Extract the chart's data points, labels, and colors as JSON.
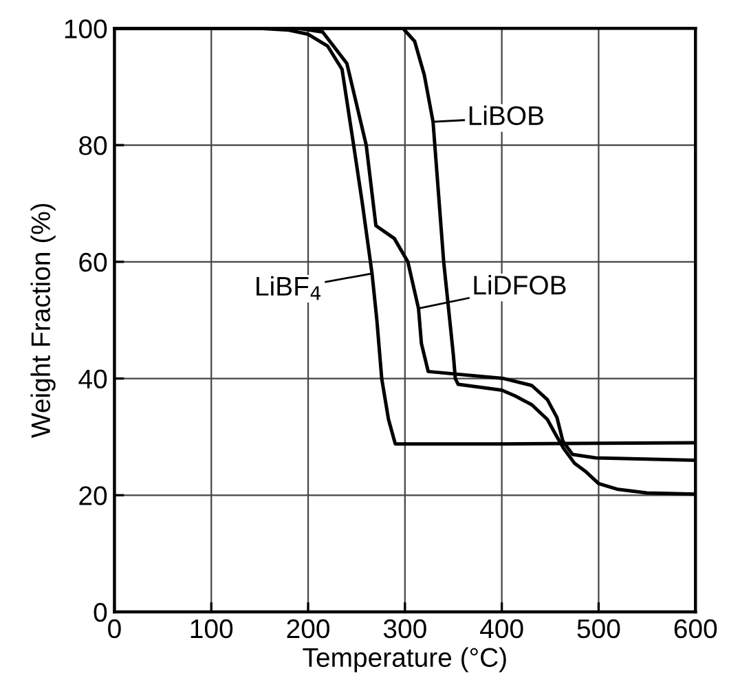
{
  "chart_data": {
    "type": "line",
    "xlabel": "Temperature (°C)",
    "ylabel": "Weight Fraction (%)",
    "xlim": [
      0,
      600
    ],
    "ylim": [
      0,
      100
    ],
    "xticks": [
      0,
      100,
      200,
      300,
      400,
      500,
      600
    ],
    "yticks": [
      0,
      20,
      40,
      60,
      80,
      100
    ],
    "grid": true,
    "legend": false,
    "marker": "none",
    "line_style": "solid",
    "series": [
      {
        "color": "#000000",
        "x": [
          0,
          150,
          180,
          200,
          220,
          235,
          247,
          256,
          266,
          271,
          276,
          283,
          290,
          300,
          400,
          500,
          600
        ],
        "values": [
          100,
          100,
          99.7,
          99,
          97,
          93,
          80,
          70,
          58,
          50,
          40,
          33,
          28.8,
          28.8,
          28.8,
          28.9,
          29
        ]
      },
      {
        "color": "#000000",
        "x": [
          0,
          190,
          215,
          240,
          260,
          270,
          289,
          303,
          314,
          317,
          324,
          402,
          431,
          447,
          457,
          463,
          473,
          497,
          600
        ],
        "values": [
          100,
          100,
          99.4,
          94,
          80,
          66.2,
          64,
          60,
          52,
          46,
          41.2,
          40,
          38.8,
          36.4,
          33.3,
          29.3,
          27,
          26.4,
          26
        ]
      },
      {
        "color": "#000000",
        "x": [
          0,
          298,
          310,
          320,
          329,
          340,
          350,
          352,
          355,
          400,
          414,
          431,
          447,
          457,
          464,
          475,
          487,
          500,
          520,
          550,
          600
        ],
        "values": [
          100,
          100,
          97.8,
          92,
          84,
          60,
          44,
          40,
          39,
          38,
          37,
          35.5,
          33,
          30,
          28,
          25.5,
          24,
          22,
          21,
          20.4,
          20.2
        ]
      }
    ],
    "annotations": [
      {
        "text": "LiBOB",
        "x": 329,
        "y": 84
      },
      {
        "text": "LiDFOB",
        "x": 314,
        "y": 52
      },
      {
        "text": "LiBF$_{4}$",
        "x": 266,
        "y": 58
      }
    ]
  }
}
